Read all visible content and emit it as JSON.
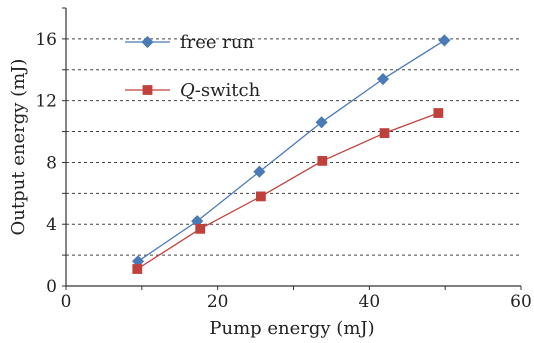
{
  "chart_data": {
    "type": "line",
    "xlabel": "Pump energy (mJ)",
    "ylabel": "Output energy (mJ)",
    "xlim": [
      0,
      60
    ],
    "ylim": [
      0,
      18
    ],
    "xticks": [
      0,
      20,
      40,
      60
    ],
    "yticks": [
      0,
      4,
      8,
      12,
      16
    ],
    "grid": "horizontal dashed",
    "legend_position": "top-left",
    "series": [
      {
        "name": "free run",
        "name_parts": [
          {
            "text": "free run",
            "italic": false
          }
        ],
        "color": "#4a7ab8",
        "marker": "diamond",
        "x": [
          9.5,
          17.3,
          25.5,
          33.7,
          41.8,
          49.9
        ],
        "y": [
          1.6,
          4.2,
          7.4,
          10.6,
          13.4,
          15.9
        ]
      },
      {
        "name": "Q-switch",
        "name_parts": [
          {
            "text": "Q",
            "italic": true
          },
          {
            "text": "-switch",
            "italic": false
          }
        ],
        "color": "#c0413b",
        "marker": "square",
        "x": [
          9.4,
          17.7,
          25.7,
          33.8,
          42.0,
          49.1
        ],
        "y": [
          1.1,
          3.7,
          5.8,
          8.1,
          9.9,
          11.2
        ]
      }
    ]
  }
}
